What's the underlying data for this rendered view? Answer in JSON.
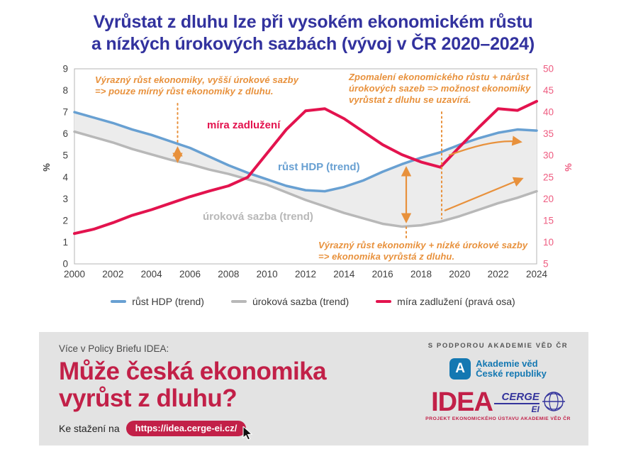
{
  "title": {
    "line1": "Vyrůstat z dluhu lze při vysokém ekonomickém růstu",
    "line2": "a nízkých úrokových sazbách (vývoj v ČR 2020–2024)"
  },
  "chart_data": {
    "type": "line",
    "x": [
      2000,
      2001,
      2002,
      2003,
      2004,
      2005,
      2006,
      2007,
      2008,
      2009,
      2010,
      2011,
      2012,
      2013,
      2014,
      2015,
      2016,
      2017,
      2018,
      2019,
      2020,
      2021,
      2022,
      2023,
      2024
    ],
    "series": [
      {
        "id": "gdp",
        "name": "růst HDP (trend)",
        "axis": "left",
        "color": "#68a0d2",
        "values": [
          7.0,
          6.75,
          6.5,
          6.2,
          5.95,
          5.65,
          5.35,
          4.95,
          4.55,
          4.2,
          3.9,
          3.6,
          3.4,
          3.35,
          3.55,
          3.85,
          4.25,
          4.6,
          4.9,
          5.15,
          5.5,
          5.8,
          6.05,
          6.2,
          6.15
        ]
      },
      {
        "id": "rate",
        "name": "úroková sazba (trend)",
        "axis": "left",
        "color": "#b8b8b8",
        "values": [
          6.1,
          5.85,
          5.6,
          5.3,
          5.05,
          4.8,
          4.6,
          4.35,
          4.15,
          3.9,
          3.65,
          3.3,
          2.95,
          2.65,
          2.35,
          2.1,
          1.85,
          1.72,
          1.78,
          1.95,
          2.2,
          2.5,
          2.8,
          3.05,
          3.35
        ]
      },
      {
        "id": "debt",
        "name": "míra zadlužení (pravá osa)",
        "axis": "right",
        "color": "#e3134e",
        "values": [
          12,
          13,
          14.5,
          16.2,
          17.5,
          19,
          20.5,
          21.8,
          23,
          25,
          30.5,
          36,
          40.3,
          40.8,
          38.5,
          35.5,
          32.5,
          30.2,
          28.5,
          27.3,
          32,
          36.5,
          40.8,
          40.4,
          42.5
        ]
      }
    ],
    "left_axis": {
      "label": "%",
      "range": [
        0,
        9
      ],
      "ticks": [
        0,
        1,
        2,
        3,
        4,
        5,
        6,
        7,
        8,
        9
      ],
      "color": "#404040"
    },
    "right_axis": {
      "label": "%",
      "range": [
        5,
        50
      ],
      "ticks": [
        5,
        10,
        15,
        20,
        25,
        30,
        35,
        40,
        45,
        50
      ],
      "color": "#ee5c80"
    },
    "x_ticks": [
      2000,
      2002,
      2004,
      2006,
      2008,
      2010,
      2012,
      2014,
      2016,
      2018,
      2020,
      2022,
      2024
    ],
    "grid": false,
    "fill_between": {
      "series": [
        "gdp",
        "rate"
      ],
      "color": "#ececec"
    },
    "annotation_color": "#e8913c",
    "series_labels": {
      "debt": "míra zadlužení",
      "gdp": "růst HDP (trend)",
      "rate": "úroková sazba (trend)"
    },
    "annotations": {
      "top_left": "Výrazný růst ekonomiky, vyšší úrokové sazby\n=> pouze mírný růst ekonomiky z dluhu.",
      "top_right": "Zpomalení ekonomického růstu + nárůst\núrokových sazeb => možnost ekonomiky\nvyrůstat z dluhu se uzavírá.",
      "bottom": "Výrazný růst ekonomiky + nízké úrokové sazby\n=> ekonomika vyrůstá z dluhu."
    }
  },
  "legend": {
    "items": [
      {
        "label": "růst HDP (trend)",
        "color": "#68a0d2"
      },
      {
        "label": "úroková sazba (trend)",
        "color": "#b8b8b8"
      },
      {
        "label": "míra zadlužení (pravá osa)",
        "color": "#e3134e"
      }
    ]
  },
  "footer": {
    "intro": "Více v Policy Briefu IDEA:",
    "heading": "Může česká ekonomika\nvyrůst z dluhu?",
    "download_label": "Ke stažení na",
    "url": "https://idea.cerge-ei.cz/",
    "support_text": "S PODPOROU AKADEMIE VĚD ČR",
    "av_logo": {
      "initial": "A",
      "text": "Akademie věd\nČeské republiky"
    },
    "idea_logo": {
      "name": "IDEA",
      "cerge": "CERGE",
      "ei": "EI",
      "project": "PROJEKT EKONOMICKÉHO ÚSTAVU AKADEMIE VĚD ČR"
    }
  }
}
